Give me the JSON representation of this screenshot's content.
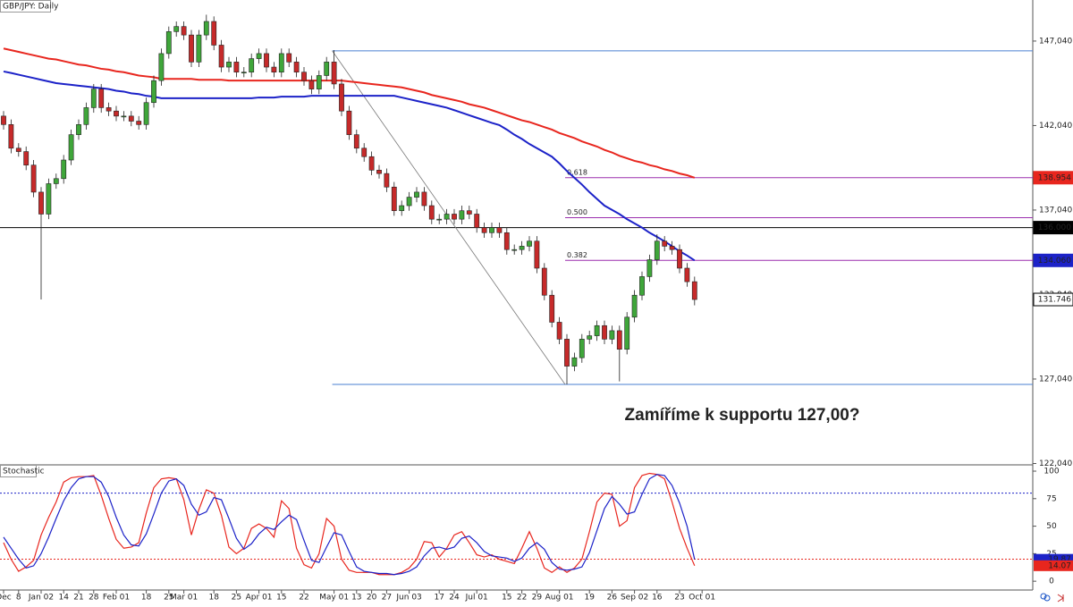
{
  "chart_data": [
    {
      "type": "candlestick",
      "title": "GBP/JPY: Daily",
      "annotation": "Zamíříme k supportu 127,00?",
      "categories": [
        "Dec",
        null,
        "8",
        null,
        null,
        "Jan 02",
        null,
        null,
        "14",
        null,
        "21",
        null,
        "28",
        null,
        null,
        "Feb 01",
        null,
        null,
        null,
        "18",
        null,
        null,
        "25",
        null,
        "Mar 01",
        null,
        null,
        null,
        "18",
        null,
        null,
        "25",
        null,
        null,
        "Apr 01",
        null,
        null,
        "15",
        null,
        null,
        "22",
        null,
        null,
        null,
        "May 01",
        null,
        null,
        "13",
        null,
        "20",
        null,
        "27",
        null,
        null,
        "Jun 03",
        null,
        null,
        null,
        "17",
        null,
        "24",
        null,
        null,
        "Jul 01",
        null,
        null,
        null,
        "15",
        null,
        "22",
        null,
        "29",
        null,
        null,
        "Aug 01",
        null,
        null,
        null,
        "19",
        null,
        null,
        "26",
        null,
        null,
        "Sep 02",
        null,
        null,
        "16",
        null,
        null,
        "23",
        null,
        null,
        "Oct 01"
      ],
      "open": [
        142.6,
        142.1,
        140.7,
        140.5,
        139.7,
        138.1,
        136.8,
        138.6,
        138.9,
        140.0,
        141.5,
        142.1,
        143.1,
        144.2,
        143.1,
        142.9,
        142.6,
        142.6,
        142.3,
        142.1,
        143.4,
        144.7,
        146.3,
        147.6,
        147.9,
        147.4,
        145.8,
        147.4,
        148.2,
        146.8,
        145.5,
        145.8,
        145.2,
        145.2,
        146.0,
        146.3,
        145.5,
        145.2,
        146.3,
        145.8,
        145.2,
        144.7,
        144.2,
        145.0,
        145.8,
        144.5,
        142.9,
        141.5,
        140.7,
        140.2,
        139.4,
        139.2,
        138.4,
        137.0,
        137.3,
        137.8,
        138.1,
        137.3,
        136.5,
        136.5,
        136.8,
        136.5,
        137.0,
        136.8,
        136.0,
        135.7,
        136.0,
        135.7,
        134.7,
        134.7,
        134.9,
        135.2,
        133.6,
        132.0,
        130.4,
        129.4,
        127.8,
        128.3,
        129.4,
        129.6,
        130.2,
        129.4,
        129.9,
        128.8,
        130.7,
        132.0,
        133.1,
        134.1,
        135.2,
        134.9,
        134.7,
        133.6,
        132.8,
        null
      ],
      "high": [
        142.9,
        142.4,
        141.0,
        140.8,
        140.0,
        138.4,
        138.9,
        139.2,
        140.3,
        141.8,
        142.4,
        143.4,
        144.5,
        144.5,
        143.4,
        143.2,
        142.9,
        142.9,
        142.6,
        143.7,
        145.0,
        146.6,
        147.9,
        148.2,
        148.2,
        147.7,
        147.7,
        148.6,
        148.5,
        147.1,
        146.1,
        146.1,
        145.5,
        146.3,
        146.6,
        146.6,
        145.8,
        146.6,
        146.6,
        146.1,
        145.5,
        145.0,
        145.3,
        146.1,
        146.5,
        144.8,
        143.2,
        141.8,
        141.0,
        140.5,
        139.7,
        139.5,
        138.7,
        137.6,
        138.1,
        138.4,
        138.4,
        137.6,
        136.8,
        137.1,
        137.1,
        137.3,
        137.3,
        137.1,
        136.3,
        136.3,
        136.3,
        136.0,
        135.0,
        135.2,
        135.5,
        135.5,
        133.9,
        132.3,
        130.7,
        129.7,
        128.6,
        129.7,
        129.9,
        130.5,
        130.5,
        130.2,
        130.2,
        131.0,
        132.3,
        133.4,
        134.4,
        135.6,
        135.5,
        135.2,
        135.0,
        133.9,
        133.1,
        null
      ],
      "low": [
        141.8,
        140.4,
        140.2,
        139.4,
        137.8,
        131.75,
        136.5,
        138.3,
        138.6,
        139.7,
        141.2,
        141.8,
        142.8,
        142.8,
        142.6,
        142.3,
        142.3,
        142.0,
        141.8,
        141.8,
        143.1,
        144.4,
        146.0,
        147.3,
        147.1,
        145.5,
        145.5,
        147.1,
        146.5,
        145.2,
        145.2,
        144.9,
        144.9,
        144.9,
        145.7,
        145.2,
        144.9,
        144.9,
        145.5,
        144.9,
        144.4,
        143.9,
        143.9,
        144.7,
        144.2,
        142.6,
        141.2,
        140.4,
        139.9,
        139.1,
        138.9,
        138.1,
        136.7,
        136.7,
        137.0,
        137.5,
        137.0,
        136.2,
        136.2,
        136.2,
        136.2,
        136.2,
        136.5,
        135.7,
        135.4,
        135.4,
        135.4,
        134.4,
        134.4,
        134.4,
        134.6,
        133.3,
        131.7,
        130.1,
        129.1,
        126.72,
        127.5,
        128.0,
        129.1,
        129.3,
        129.1,
        129.1,
        126.9,
        128.5,
        130.4,
        131.7,
        132.8,
        133.8,
        134.6,
        134.4,
        133.3,
        132.5,
        131.4,
        null
      ],
      "close": [
        142.1,
        140.7,
        140.5,
        139.7,
        138.1,
        136.8,
        138.6,
        138.9,
        140.0,
        141.5,
        142.1,
        143.1,
        144.2,
        143.1,
        142.9,
        142.6,
        142.6,
        142.3,
        142.1,
        143.4,
        144.7,
        146.3,
        147.6,
        147.9,
        147.4,
        145.8,
        147.4,
        148.2,
        146.8,
        145.5,
        145.8,
        145.2,
        145.2,
        146.0,
        146.3,
        145.5,
        145.2,
        146.3,
        145.8,
        145.2,
        144.7,
        144.2,
        145.0,
        145.8,
        144.5,
        142.9,
        141.5,
        140.7,
        140.2,
        139.4,
        139.2,
        138.4,
        137.0,
        137.3,
        137.8,
        138.1,
        137.3,
        136.5,
        136.5,
        136.8,
        136.5,
        137.0,
        136.8,
        136.0,
        135.7,
        136.0,
        135.7,
        134.7,
        134.7,
        134.9,
        135.2,
        133.6,
        132.0,
        130.4,
        129.4,
        127.8,
        128.3,
        129.4,
        129.6,
        130.2,
        129.4,
        129.9,
        128.8,
        130.7,
        132.0,
        133.1,
        134.1,
        135.2,
        134.9,
        134.7,
        133.6,
        132.8,
        131.746,
        null
      ],
      "up_color": "#3fa63a",
      "down_color": "#c62a2a",
      "ylim": [
        121.96,
        149.47
      ],
      "yticks": [
        {
          "value": 147.04,
          "label": "147,040"
        },
        {
          "value": 142.04,
          "label": "142,040"
        },
        {
          "value": 137.04,
          "label": "137,040"
        },
        {
          "value": 132.04,
          "label": "132,040"
        },
        {
          "value": 127.04,
          "label": "127,040"
        },
        {
          "value": 122.04,
          "label": "122,040"
        }
      ],
      "moving_averages": [
        {
          "color": "#e8261e",
          "values": [
            146.6,
            146.5,
            146.4,
            146.3,
            146.2,
            146.1,
            146.0,
            145.95,
            145.85,
            145.75,
            145.65,
            145.6,
            145.5,
            145.4,
            145.35,
            145.25,
            145.2,
            145.1,
            145.0,
            144.95,
            144.9,
            144.8,
            144.8,
            144.8,
            144.8,
            144.8,
            144.75,
            144.75,
            144.75,
            144.75,
            144.7,
            144.7,
            144.7,
            144.7,
            144.7,
            144.7,
            144.7,
            144.7,
            144.7,
            144.7,
            144.7,
            144.7,
            144.7,
            144.7,
            144.7,
            144.7,
            144.65,
            144.6,
            144.55,
            144.5,
            144.45,
            144.4,
            144.35,
            144.3,
            144.2,
            144.1,
            144.0,
            143.85,
            143.75,
            143.65,
            143.55,
            143.45,
            143.3,
            143.2,
            143.1,
            142.95,
            142.8,
            142.65,
            142.5,
            142.35,
            142.25,
            142.1,
            141.95,
            141.8,
            141.6,
            141.45,
            141.3,
            141.1,
            140.95,
            140.8,
            140.6,
            140.45,
            140.25,
            140.1,
            139.95,
            139.85,
            139.7,
            139.6,
            139.45,
            139.35,
            139.2,
            139.1,
            138.954,
            null
          ]
        },
        {
          "color": "#1c22c8",
          "values": [
            145.24,
            145.15,
            145.05,
            144.95,
            144.85,
            144.75,
            144.65,
            144.55,
            144.5,
            144.45,
            144.4,
            144.35,
            144.3,
            144.25,
            144.2,
            144.1,
            144.05,
            143.95,
            143.9,
            143.8,
            143.75,
            143.66,
            143.66,
            143.66,
            143.66,
            143.66,
            143.66,
            143.66,
            143.66,
            143.66,
            143.66,
            143.66,
            143.66,
            143.66,
            143.7,
            143.7,
            143.7,
            143.75,
            143.75,
            143.75,
            143.75,
            143.8,
            143.8,
            143.8,
            143.8,
            143.8,
            143.8,
            143.8,
            143.8,
            143.8,
            143.8,
            143.8,
            143.8,
            143.7,
            143.6,
            143.5,
            143.4,
            143.3,
            143.2,
            143.1,
            142.95,
            142.8,
            142.65,
            142.5,
            142.35,
            142.2,
            142.07,
            141.8,
            141.5,
            141.25,
            140.95,
            140.7,
            140.45,
            140.2,
            139.8,
            139.35,
            138.95,
            138.55,
            138.1,
            137.7,
            137.3,
            137.05,
            136.8,
            136.5,
            136.25,
            136.0,
            135.7,
            135.45,
            135.19,
            134.9,
            134.6,
            134.35,
            134.06,
            null
          ]
        }
      ],
      "levels": [
        {
          "value": 146.46,
          "color": "#4a7fd0"
        },
        {
          "value": 126.72,
          "color": "#4a7fd0"
        },
        {
          "value": 136.0,
          "color": "#000000"
        }
      ],
      "fib_levels": [
        {
          "label": "0.618",
          "value": 138.954,
          "color": "#9b2fae"
        },
        {
          "label": "0.500",
          "value": 136.59,
          "color": "#9b2fae"
        },
        {
          "label": "0.382",
          "value": 134.06,
          "color": "#9b2fae"
        }
      ],
      "price_tags": [
        {
          "value": 138.954,
          "label": "138.954",
          "color": "#e8261e",
          "text_color": "#ffffff"
        },
        {
          "value": 136.0,
          "label": "136.000",
          "color": "#000000",
          "text_color": "#ffffff"
        },
        {
          "value": 134.06,
          "label": "134.060",
          "color": "#1c22c8",
          "text_color": "#ffffff"
        },
        {
          "value": 131.746,
          "label": "131.746",
          "color": "#ffffff",
          "text_color": "#000000"
        }
      ]
    },
    {
      "type": "line",
      "title": "Stochastic",
      "series": [
        {
          "color": "#e8261e",
          "values": [
            35,
            20,
            9,
            13,
            19,
            42,
            58,
            72,
            90,
            94,
            95,
            95,
            96,
            78,
            57,
            38,
            30,
            31,
            35,
            62,
            85,
            93,
            94,
            93,
            74,
            42,
            65,
            83,
            80,
            60,
            31,
            25,
            30,
            48,
            52,
            48,
            40,
            73,
            66,
            30,
            15,
            12,
            25,
            57,
            50,
            20,
            10,
            8,
            8,
            8,
            6,
            6,
            6,
            8,
            12,
            20,
            36,
            35,
            22,
            30,
            42,
            45,
            35,
            24,
            22,
            24,
            20,
            18,
            16,
            30,
            45,
            30,
            12,
            8,
            13,
            8,
            12,
            20,
            45,
            72,
            80,
            79,
            50,
            55,
            85,
            96,
            98,
            97,
            93,
            72,
            48,
            30,
            14.07,
            null
          ]
        },
        {
          "color": "#1c22c8",
          "values": [
            40,
            30,
            20,
            12,
            14,
            25,
            40,
            57,
            73,
            85,
            93,
            95,
            95,
            90,
            77,
            58,
            42,
            33,
            32,
            43,
            61,
            80,
            91,
            93,
            87,
            70,
            60,
            63,
            76,
            74,
            57,
            39,
            29,
            34,
            43,
            49,
            47,
            54,
            60,
            56,
            37,
            19,
            17,
            31,
            44,
            42,
            27,
            13,
            9,
            8,
            7,
            7,
            6,
            7,
            9,
            13,
            23,
            30,
            31,
            29,
            31,
            39,
            41,
            35,
            27,
            23,
            22,
            21,
            18,
            21,
            30,
            35,
            29,
            17,
            11,
            10,
            11,
            13,
            26,
            46,
            66,
            77,
            70,
            61,
            63,
            79,
            93,
            97,
            96,
            87,
            71,
            50,
            19.87,
            null
          ]
        }
      ],
      "ylim": [
        -8,
        105.7
      ],
      "yticks": [
        100,
        75,
        50,
        25,
        0
      ],
      "levels": [
        {
          "value": 80,
          "color": "#1c22c8"
        },
        {
          "value": 20,
          "color": "#e8261e"
        }
      ],
      "value_tags": [
        {
          "value": 19.87,
          "color": "#1c22c8"
        },
        {
          "value": 14.07,
          "color": "#e8261e"
        }
      ]
    }
  ]
}
